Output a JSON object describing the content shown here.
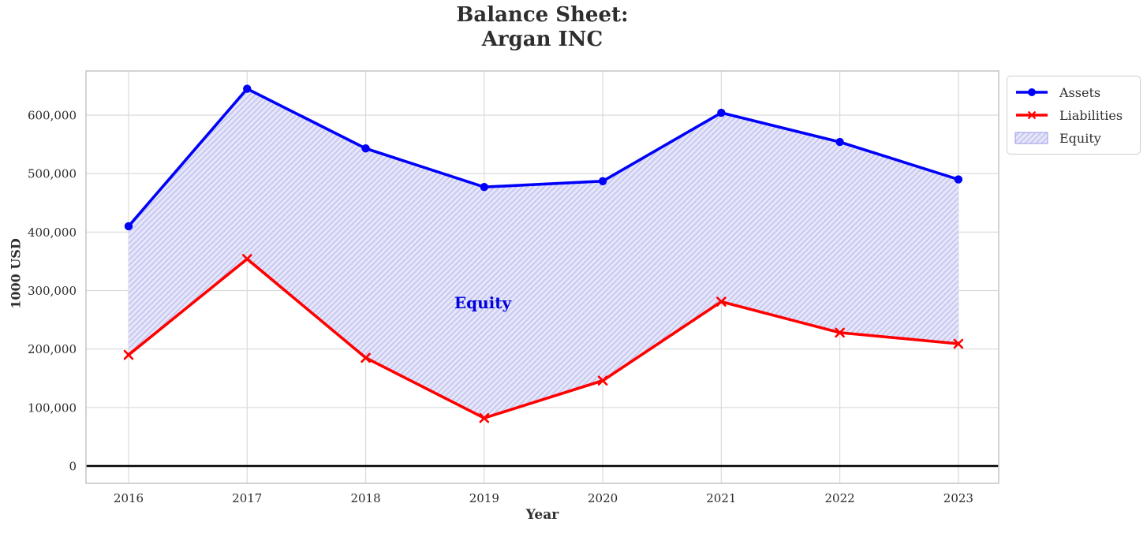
{
  "header": {
    "title": "Balance Sheet:\nArgan INC"
  },
  "axes": {
    "y_title": "1000 USD",
    "x_title": "Year"
  },
  "annotation": {
    "text": "Equity"
  },
  "legend": {
    "assets": "Assets",
    "liabilities": "Liabilities",
    "equity": "Equity"
  },
  "chart_data": {
    "type": "line",
    "title": "Balance Sheet: Argan INC",
    "xlabel": "Year",
    "ylabel": "1000 USD",
    "categories": [
      "2016",
      "2017",
      "2018",
      "2019",
      "2020",
      "2021",
      "2022",
      "2023"
    ],
    "series": [
      {
        "name": "Assets",
        "marker": "circle",
        "color": "#0000fa",
        "values": [
          410000,
          645000,
          543000,
          477000,
          487000,
          604000,
          554000,
          490000
        ]
      },
      {
        "name": "Liabilities",
        "marker": "x",
        "color": "#ff0000",
        "values": [
          190000,
          354000,
          185000,
          82000,
          146000,
          281000,
          228000,
          209000
        ]
      }
    ],
    "area": {
      "name": "Equity",
      "between": [
        "Assets",
        "Liabilities"
      ],
      "hatch": "//",
      "fill_color": "#e7e7fa",
      "hatch_color": "#c8c8f1",
      "edge_color": "#9a9ae8"
    },
    "annotation": {
      "text": "Equity",
      "x": "2019",
      "y": 280000,
      "color": "#0000e0"
    },
    "yticks": [
      {
        "value": 0,
        "label": "0"
      },
      {
        "value": 100000,
        "label": "100,000"
      },
      {
        "value": 200000,
        "label": "200,000"
      },
      {
        "value": 300000,
        "label": "300,000"
      },
      {
        "value": 400000,
        "label": "400,000"
      },
      {
        "value": 500000,
        "label": "500,000"
      },
      {
        "value": 600000,
        "label": "600,000"
      }
    ],
    "ylim": [
      -30000,
      676000
    ],
    "grid": true,
    "zero_line": true,
    "legend_position": "outside upper right",
    "legend_entries": [
      "Assets",
      "Liabilities",
      "Equity"
    ]
  }
}
